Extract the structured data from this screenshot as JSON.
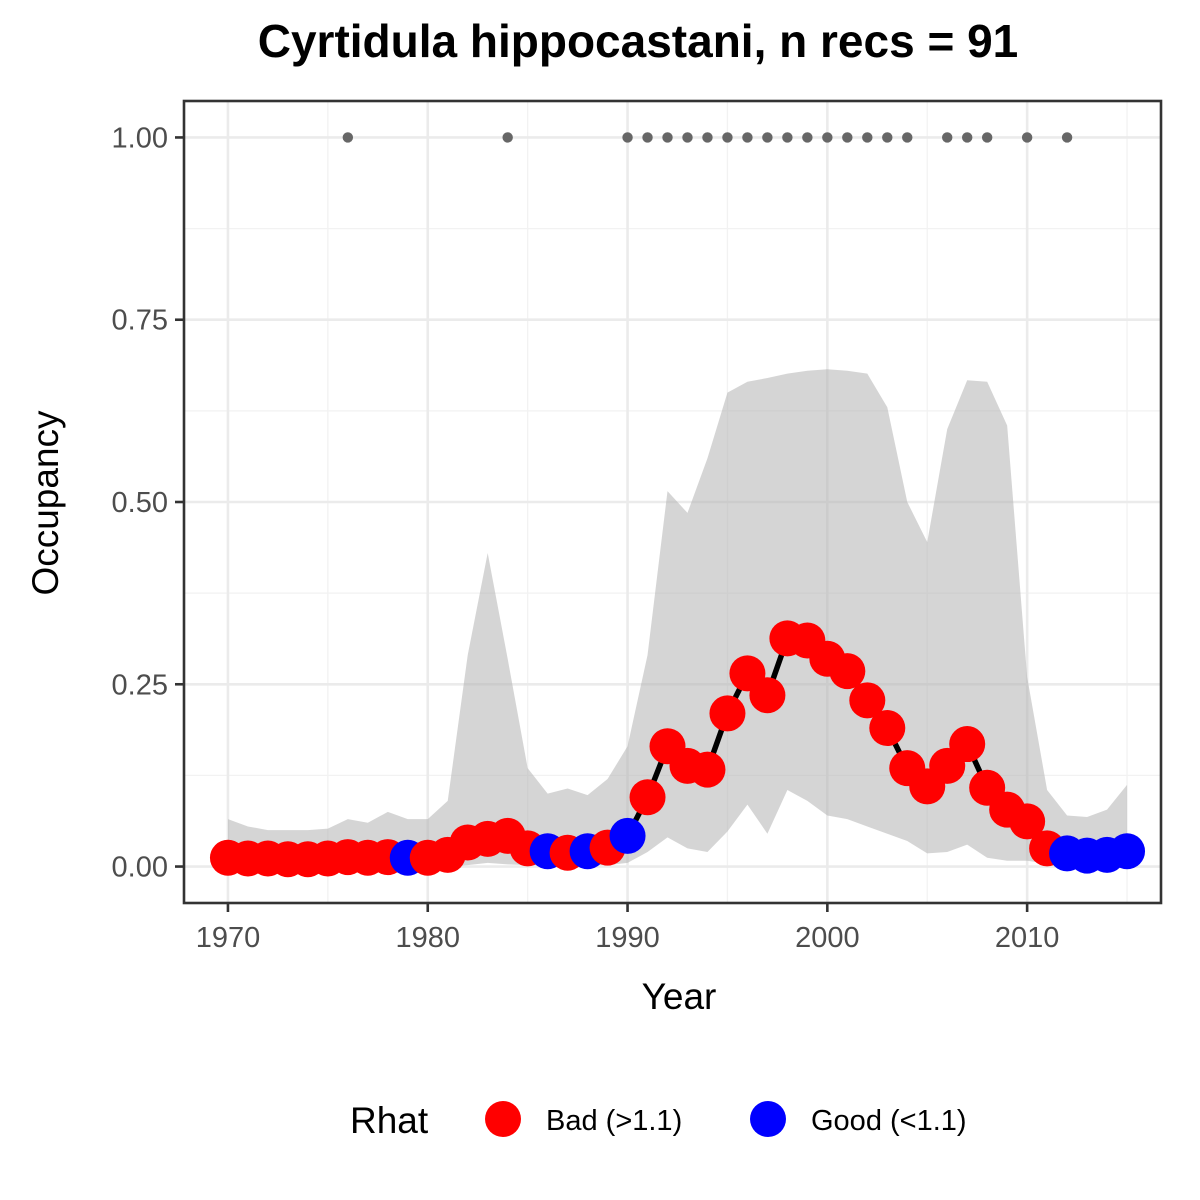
{
  "chart_data": {
    "type": "line",
    "title": "Cyrtidula hippocastani, n recs = 91",
    "xlabel": "Year",
    "ylabel": "Occupancy",
    "xlim": [
      1967.8,
      2016.7
    ],
    "ylim": [
      -0.05,
      1.05
    ],
    "x_ticks": [
      1970,
      1980,
      1990,
      2000,
      2010
    ],
    "x_tick_labels": [
      "1970",
      "1980",
      "1990",
      "2000",
      "2010"
    ],
    "y_ticks": [
      0,
      0.25,
      0.5,
      0.75,
      1.0
    ],
    "y_tick_labels": [
      "0.00",
      "0.25",
      "0.50",
      "0.75",
      "1.00"
    ],
    "grid": true,
    "legend": {
      "title": "Rhat",
      "position": "bottom",
      "entries": [
        {
          "label": "Bad (>1.1)",
          "color": "#ff0000"
        },
        {
          "label": "Good (<1.1)",
          "color": "#0000ff"
        }
      ]
    },
    "series": {
      "years": [
        1970,
        1971,
        1972,
        1973,
        1974,
        1975,
        1976,
        1977,
        1978,
        1979,
        1980,
        1981,
        1982,
        1983,
        1984,
        1985,
        1986,
        1987,
        1988,
        1989,
        1990,
        1991,
        1992,
        1993,
        1994,
        1995,
        1996,
        1997,
        1998,
        1999,
        2000,
        2001,
        2002,
        2003,
        2004,
        2005,
        2006,
        2007,
        2008,
        2009,
        2010,
        2011,
        2012,
        2013,
        2014,
        2015
      ],
      "occupancy": [
        0.012,
        0.011,
        0.011,
        0.01,
        0.01,
        0.011,
        0.013,
        0.012,
        0.013,
        0.012,
        0.012,
        0.016,
        0.033,
        0.038,
        0.042,
        0.025,
        0.021,
        0.019,
        0.021,
        0.026,
        0.042,
        0.095,
        0.165,
        0.138,
        0.133,
        0.21,
        0.265,
        0.235,
        0.313,
        0.31,
        0.285,
        0.268,
        0.228,
        0.19,
        0.135,
        0.11,
        0.138,
        0.168,
        0.108,
        0.078,
        0.062,
        0.025,
        0.018,
        0.015,
        0.016,
        0.021
      ],
      "rhat": [
        "bad",
        "bad",
        "bad",
        "bad",
        "bad",
        "bad",
        "bad",
        "bad",
        "bad",
        "good",
        "bad",
        "bad",
        "bad",
        "bad",
        "bad",
        "bad",
        "good",
        "bad",
        "good",
        "bad",
        "good",
        "bad",
        "bad",
        "bad",
        "bad",
        "bad",
        "bad",
        "bad",
        "bad",
        "bad",
        "bad",
        "bad",
        "bad",
        "bad",
        "bad",
        "bad",
        "bad",
        "bad",
        "bad",
        "bad",
        "bad",
        "bad",
        "good",
        "good",
        "good",
        "good"
      ],
      "ci_upper": [
        0.065,
        0.055,
        0.05,
        0.05,
        0.05,
        0.052,
        0.065,
        0.06,
        0.075,
        0.065,
        0.065,
        0.09,
        0.29,
        0.43,
        0.285,
        0.135,
        0.1,
        0.107,
        0.098,
        0.12,
        0.165,
        0.29,
        0.515,
        0.485,
        0.56,
        0.65,
        0.665,
        0.67,
        0.676,
        0.68,
        0.682,
        0.68,
        0.676,
        0.63,
        0.5,
        0.445,
        0.6,
        0.667,
        0.665,
        0.605,
        0.26,
        0.105,
        0.07,
        0.068,
        0.078,
        0.112
      ],
      "ci_lower": [
        0.0,
        0.0,
        0.0,
        0.0,
        0.0,
        0.0,
        0.0,
        0.0,
        0.0,
        0.0,
        0.0,
        0.0,
        0.002,
        0.005,
        0.003,
        0.002,
        0.002,
        0.001,
        0.002,
        0.002,
        0.005,
        0.02,
        0.04,
        0.025,
        0.02,
        0.048,
        0.085,
        0.045,
        0.105,
        0.09,
        0.07,
        0.065,
        0.055,
        0.045,
        0.035,
        0.018,
        0.02,
        0.03,
        0.012,
        0.008,
        0.008,
        0.004,
        0.002,
        0.002,
        0.002,
        0.003
      ]
    },
    "detections": {
      "years": [
        1976,
        1984,
        1990,
        1991,
        1992,
        1993,
        1994,
        1995,
        1996,
        1997,
        1998,
        1999,
        2000,
        2001,
        2002,
        2003,
        2004,
        2006,
        2007,
        2008,
        2010,
        2012
      ],
      "value": 1.0
    }
  }
}
